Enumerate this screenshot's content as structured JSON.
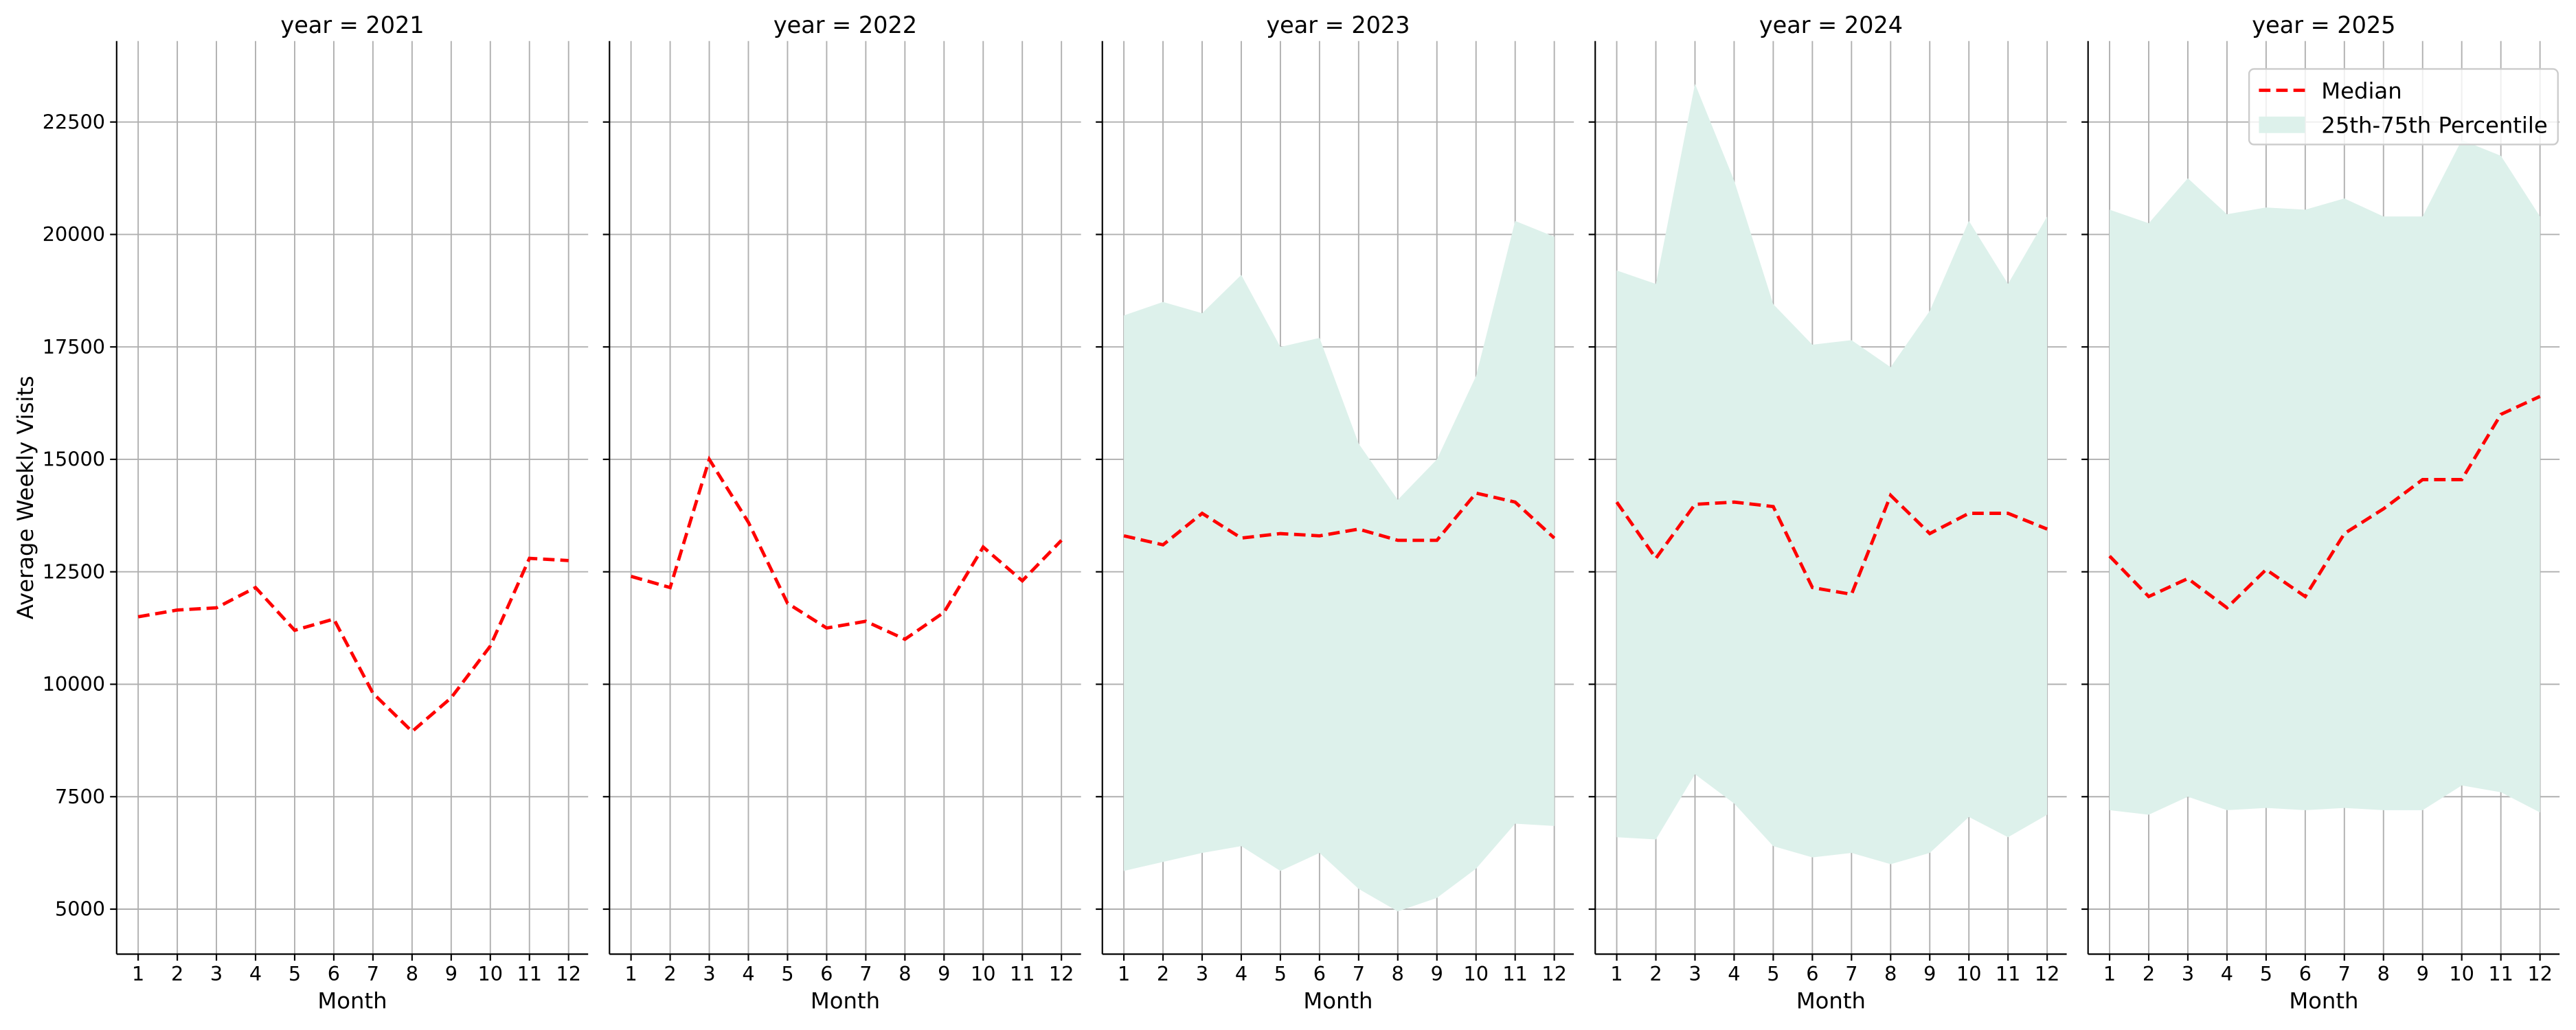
{
  "chart_data": [
    {
      "type": "line",
      "title": "year = 2021",
      "x_label": "Month",
      "y_label": "Average Weekly Visits",
      "x": [
        1,
        2,
        3,
        4,
        5,
        6,
        7,
        8,
        9,
        10,
        11,
        12
      ],
      "xlim": [
        0.45,
        12.5
      ],
      "ylim": [
        4000,
        24300
      ],
      "yticks": [
        5000,
        7500,
        10000,
        12500,
        15000,
        17500,
        20000,
        22500
      ],
      "grid": true,
      "series": [
        {
          "type": "line",
          "color": "#ff0000",
          "values": [
            11500,
            11650,
            11700,
            12150,
            11200,
            11450,
            9800,
            8950,
            9700,
            10850,
            12800,
            12750
          ]
        }
      ]
    },
    {
      "type": "line",
      "title": "year = 2022",
      "x_label": "Month",
      "sharey": true,
      "x": [
        1,
        2,
        3,
        4,
        5,
        6,
        7,
        8,
        9,
        10,
        11,
        12
      ],
      "xlim": [
        0.45,
        12.5
      ],
      "grid": true,
      "series": [
        {
          "type": "line",
          "color": "#ff0000",
          "values": [
            12400,
            12150,
            15000,
            13600,
            11800,
            11250,
            11400,
            11000,
            11600,
            13050,
            12300,
            13200
          ]
        }
      ]
    },
    {
      "type": "line",
      "title": "year = 2023",
      "x_label": "Month",
      "sharey": true,
      "x": [
        1,
        2,
        3,
        4,
        5,
        6,
        7,
        8,
        9,
        10,
        11,
        12
      ],
      "xlim": [
        0.45,
        12.5
      ],
      "grid": true,
      "series": [
        {
          "type": "line",
          "color": "#ff0000",
          "values": [
            13300,
            13100,
            13800,
            13250,
            13350,
            13300,
            13450,
            13200,
            13200,
            14250,
            14050,
            13250
          ]
        },
        {
          "type": "band",
          "color": "#ddf1eb",
          "lower": [
            5850,
            6050,
            6250,
            6400,
            5850,
            6250,
            5450,
            4950,
            5250,
            5900,
            6900,
            6850
          ],
          "upper": [
            18200,
            18500,
            18250,
            19100,
            17500,
            17700,
            15350,
            14100,
            15000,
            16850,
            20300,
            19950
          ]
        }
      ]
    },
    {
      "type": "line",
      "title": "year = 2024",
      "x_label": "Month",
      "sharey": true,
      "x": [
        1,
        2,
        3,
        4,
        5,
        6,
        7,
        8,
        9,
        10,
        11,
        12
      ],
      "xlim": [
        0.45,
        12.5
      ],
      "grid": true,
      "series": [
        {
          "type": "line",
          "color": "#ff0000",
          "values": [
            14050,
            12800,
            14000,
            14050,
            13950,
            12150,
            12000,
            14200,
            13350,
            13800,
            13800,
            13450
          ]
        },
        {
          "type": "band",
          "color": "#ddf1eb",
          "lower": [
            6600,
            6550,
            8000,
            7350,
            6400,
            6150,
            6250,
            6000,
            6250,
            7050,
            6600,
            7100
          ],
          "upper": [
            19200,
            18900,
            23350,
            21200,
            18450,
            17550,
            17650,
            17050,
            18300,
            20300,
            18900,
            20400
          ]
        }
      ]
    },
    {
      "type": "line",
      "title": "year = 2025",
      "x_label": "Month",
      "sharey": true,
      "x": [
        1,
        2,
        3,
        4,
        5,
        6,
        7,
        8,
        9,
        10,
        11,
        12
      ],
      "xlim": [
        0.45,
        12.5
      ],
      "grid": true,
      "legend": "upper right",
      "series": [
        {
          "type": "line",
          "name": "Median",
          "color": "#ff0000",
          "values": [
            12850,
            11950,
            12350,
            11700,
            12550,
            11950,
            13350,
            13900,
            14550,
            14550,
            16000,
            16400
          ]
        },
        {
          "type": "band",
          "name": "25th-75th Percentile",
          "color": "#ddf1eb",
          "lower": [
            7200,
            7100,
            7500,
            7200,
            7250,
            7200,
            7250,
            7200,
            7200,
            7750,
            7600,
            7150
          ],
          "upper": [
            20550,
            20250,
            21250,
            20450,
            20600,
            20550,
            20800,
            20400,
            20400,
            22100,
            21750,
            20400
          ]
        }
      ]
    }
  ]
}
